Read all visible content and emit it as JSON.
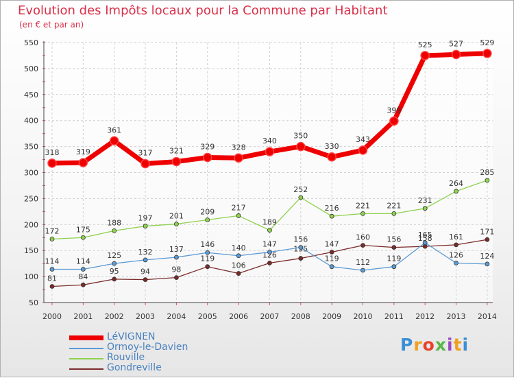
{
  "title": "Evolution des Impôts locaux pour la Commune par Habitant",
  "subtitle": "(en € et par an)",
  "chart_data": {
    "type": "line",
    "x": [
      "2000",
      "2001",
      "2002",
      "2003",
      "2004",
      "2005",
      "2006",
      "2007",
      "2008",
      "2009",
      "2010",
      "2011",
      "2012",
      "2013",
      "2014"
    ],
    "ylim": [
      50,
      550
    ],
    "yticks": [
      "50",
      "100",
      "150",
      "200",
      "250",
      "300",
      "350",
      "400",
      "450",
      "500",
      "550"
    ],
    "series": [
      {
        "name": "LéVIGNEN",
        "color": "#ee0000",
        "values": [
          318,
          319,
          361,
          317,
          321,
          329,
          328,
          340,
          350,
          330,
          343,
          399,
          525,
          527,
          529
        ]
      },
      {
        "name": "Ormoy-le-Davien",
        "color": "#5b9bd5",
        "values": [
          114,
          114,
          125,
          132,
          137,
          146,
          140,
          147,
          156,
          119,
          112,
          119,
          165,
          126,
          124
        ]
      },
      {
        "name": "Rouville",
        "color": "#8fd14f",
        "values": [
          172,
          175,
          188,
          197,
          201,
          209,
          217,
          189,
          252,
          216,
          221,
          221,
          231,
          264,
          285
        ]
      },
      {
        "name": "Gondreville",
        "color": "#7b2a2a",
        "values": [
          81,
          84,
          95,
          94,
          98,
          119,
          106,
          126,
          135,
          147,
          160,
          156,
          158,
          161,
          171
        ]
      }
    ]
  },
  "legend": [
    {
      "label": "LéVIGNEN",
      "color": "#ee0000"
    },
    {
      "label": "Ormoy-le-Davien",
      "color": "#5b9bd5"
    },
    {
      "label": "Rouville",
      "color": "#8fd14f"
    },
    {
      "label": "Gondreville",
      "color": "#7b2a2a"
    }
  ],
  "logo": {
    "text": "Proxiti"
  }
}
